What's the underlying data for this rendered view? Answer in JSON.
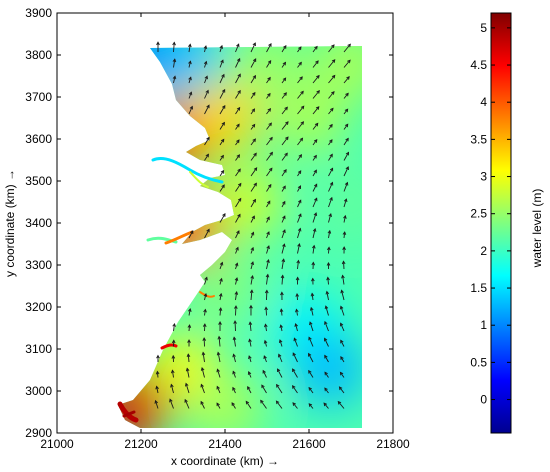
{
  "chart_data": {
    "type": "heatmap",
    "title": "",
    "xlabel": "x coordinate (km) →",
    "ylabel": "y coordinate (km) →",
    "xlim": [
      21000,
      21800
    ],
    "ylim": [
      2900,
      3900
    ],
    "x_ticks": [
      21000,
      21200,
      21400,
      21600,
      21800
    ],
    "y_ticks": [
      2900,
      3000,
      3100,
      3200,
      3300,
      3400,
      3500,
      3600,
      3700,
      3800,
      3900
    ],
    "x_tick_labels": [
      "21000",
      "21200",
      "21400",
      "21600",
      "21800"
    ],
    "y_tick_labels": [
      "2900",
      "3000",
      "3100",
      "3200",
      "3300",
      "3400",
      "3500",
      "3600",
      "3700",
      "3800",
      "3900"
    ],
    "grid": false,
    "overlay": "water velocity vectors (quiver arrows)",
    "colorbar": {
      "label": "water level (m)",
      "range": [
        -0.45,
        5.2
      ],
      "ticks": [
        0,
        0.5,
        1,
        1.5,
        2,
        2.5,
        3,
        3.5,
        4,
        4.5,
        5
      ],
      "tick_labels": [
        "0",
        "0.5",
        "1",
        "1.5",
        "2",
        "2.5",
        "3",
        "3.5",
        "4",
        "4.5",
        "5"
      ],
      "colormap": "jet"
    },
    "water_level_samples": [
      {
        "x": 21220,
        "y": 3800,
        "value": 0.8
      },
      {
        "x": 21300,
        "y": 3800,
        "value": 1.3
      },
      {
        "x": 21500,
        "y": 3780,
        "value": 2.5
      },
      {
        "x": 21700,
        "y": 3780,
        "value": 2.6
      },
      {
        "x": 21290,
        "y": 3610,
        "value": 4.3
      },
      {
        "x": 21400,
        "y": 3650,
        "value": 3.3
      },
      {
        "x": 21600,
        "y": 3650,
        "value": 2.6
      },
      {
        "x": 21300,
        "y": 3390,
        "value": 4.1
      },
      {
        "x": 21450,
        "y": 3450,
        "value": 2.8
      },
      {
        "x": 21700,
        "y": 3450,
        "value": 2.2
      },
      {
        "x": 21400,
        "y": 3250,
        "value": 2.4
      },
      {
        "x": 21600,
        "y": 3150,
        "value": 1.6
      },
      {
        "x": 21650,
        "y": 3050,
        "value": 1.3
      },
      {
        "x": 21300,
        "y": 3050,
        "value": 3.0
      },
      {
        "x": 21180,
        "y": 2960,
        "value": 4.7
      },
      {
        "x": 21400,
        "y": 2960,
        "value": 2.6
      }
    ]
  }
}
